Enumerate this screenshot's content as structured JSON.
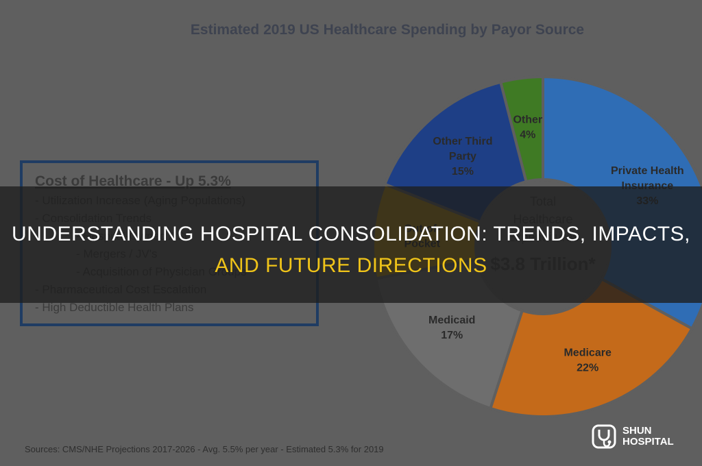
{
  "chart_data": {
    "type": "pie",
    "title": "Estimated 2019 US Healthcare Spending by Payor Source",
    "slices": [
      {
        "name": "Private Health Insurance",
        "value": 33,
        "label_lines": [
          "Private Health",
          "Insurance",
          "33%"
        ],
        "color": "#2f6db5"
      },
      {
        "name": "Medicare",
        "value": 22,
        "label_lines": [
          "Medicare",
          "22%"
        ],
        "color": "#c46a1a"
      },
      {
        "name": "Medicaid",
        "value": 17,
        "label_lines": [
          "Medicaid",
          "17%"
        ],
        "color": "#6e6e6e"
      },
      {
        "name": "Out-of-Pocket",
        "value": 9,
        "label_lines": [
          "Out-of-",
          "Pocket"
        ],
        "color": "#b08a10"
      },
      {
        "name": "Other Third Party",
        "value": 15,
        "label_lines": [
          "Other Third",
          "Party",
          "15%"
        ],
        "color": "#1e3f86"
      },
      {
        "name": "Other",
        "value": 4,
        "label_lines": [
          "Other",
          "4%"
        ],
        "color": "#3f7a24"
      }
    ],
    "center_lines": [
      "Total",
      "Healthcare",
      "Expenditures"
    ],
    "center_value": "$3.8 Trillion*"
  },
  "cost_box": {
    "title": "Cost of Healthcare - Up 5.3%",
    "items": [
      {
        "text": "- Utilization Increase (Aging Populations)",
        "indent": false
      },
      {
        "text": "- Consolidation Trends",
        "indent": false
      },
      {
        "text": "- Hospital-Owned ASC",
        "indent": true
      },
      {
        "text": "- Mergers / JV's",
        "indent": true
      },
      {
        "text": "- Acquisition of Physician Groups",
        "indent": true
      },
      {
        "text": "- Pharmaceutical Cost Escalation",
        "indent": false
      },
      {
        "text": "- High Deductible Health Plans",
        "indent": false
      }
    ]
  },
  "sources": "Sources: CMS/NHE Projections 2017-2026 - Avg. 5.5% per year - Estimated 5.3% for 2019",
  "headline": {
    "line1": "UNDERSTANDING HOSPITAL CONSOLIDATION: TRENDS, IMPACTS,",
    "line2": "AND FUTURE DIRECTIONS"
  },
  "logo": {
    "line1": "SHUN",
    "line2": "HOSPITAL",
    "icon": "stethoscope-icon"
  }
}
